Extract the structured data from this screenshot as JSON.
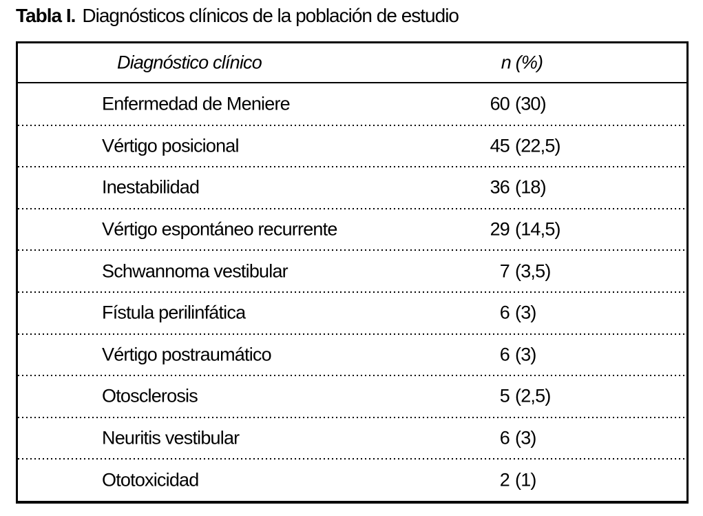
{
  "title": {
    "label": "Tabla I.",
    "text": "Diagnósticos clínicos de la población de estudio"
  },
  "table": {
    "columns": [
      "Diagnóstico clínico",
      "n (%)"
    ],
    "rows": [
      {
        "diagnosis": "Enfermedad de Meniere",
        "n": "60",
        "pct": "(30)"
      },
      {
        "diagnosis": "Vértigo posicional",
        "n": "45",
        "pct": "(22,5)"
      },
      {
        "diagnosis": "Inestabilidad",
        "n": "36",
        "pct": "(18)"
      },
      {
        "diagnosis": "Vértigo espontáneo recurrente",
        "n": "29",
        "pct": "(14,5)"
      },
      {
        "diagnosis": "Schwannoma vestibular",
        "n": "7",
        "pct": "(3,5)"
      },
      {
        "diagnosis": "Fístula perilinfática",
        "n": "6",
        "pct": "(3)"
      },
      {
        "diagnosis": "Vértigo postraumático",
        "n": "6",
        "pct": "(3)"
      },
      {
        "diagnosis": "Otosclerosis",
        "n": "5",
        "pct": "(2,5)"
      },
      {
        "diagnosis": "Neuritis vestibular",
        "n": "6",
        "pct": "(3)"
      },
      {
        "diagnosis": "Ototoxicidad",
        "n": "2",
        "pct": "(1)"
      }
    ]
  },
  "colors": {
    "text": "#000000",
    "border": "#000000",
    "background": "#ffffff"
  }
}
